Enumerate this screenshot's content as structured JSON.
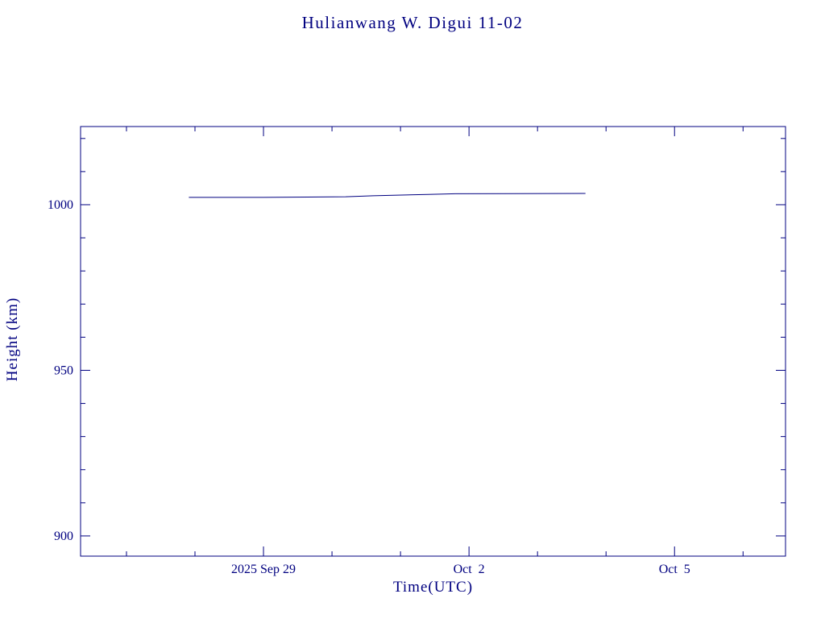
{
  "colors": {
    "accent": "#000080",
    "background": "#ffffff"
  },
  "chart_data": {
    "type": "line",
    "title": "Hulianwang W. Digui 11-02",
    "xlabel": "Time(UTC)",
    "ylabel": "Height (km)",
    "xlim": [
      -2.67,
      7.62
    ],
    "ylim": [
      893.9,
      1023.6
    ],
    "grid": false,
    "legend": "none",
    "x_unit": "days relative to 2025 Sep 29",
    "x_major_ticks": [
      {
        "x": 0,
        "label": "2025 Sep 29"
      },
      {
        "x": 3,
        "label": "Oct  2"
      },
      {
        "x": 6,
        "label": "Oct  5"
      }
    ],
    "x_minor_step": 1,
    "y_major_ticks": [
      {
        "y": 900,
        "label": "900"
      },
      {
        "y": 950,
        "label": "950"
      },
      {
        "y": 1000,
        "label": "1000"
      }
    ],
    "y_minor_step": 10,
    "series": [
      {
        "name": "height",
        "color": "#000080",
        "points": [
          [
            -1.09,
            1002.2
          ],
          [
            0.0,
            1002.2
          ],
          [
            1.2,
            1002.4
          ],
          [
            1.6,
            1002.7
          ],
          [
            2.4,
            1003.1
          ],
          [
            2.8,
            1003.3
          ],
          [
            4.7,
            1003.4
          ]
        ]
      }
    ]
  }
}
